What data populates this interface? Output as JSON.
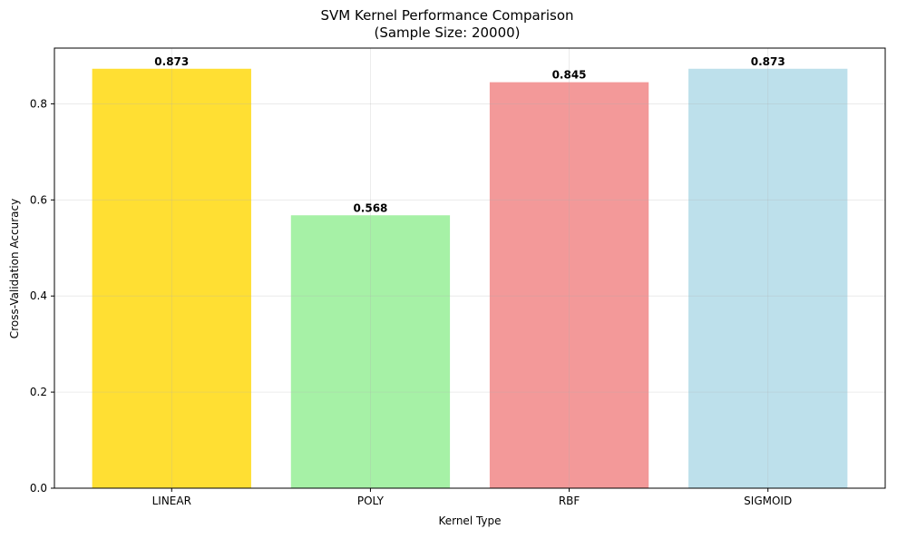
{
  "chart_data": {
    "type": "bar",
    "title": "SVM Kernel Performance Comparison",
    "subtitle": "(Sample Size: 20000)",
    "xlabel": "Kernel Type",
    "ylabel": "Cross-Validation Accuracy",
    "categories": [
      "LINEAR",
      "POLY",
      "RBF",
      "SIGMOID"
    ],
    "values": [
      0.873,
      0.568,
      0.845,
      0.873
    ],
    "value_labels": [
      "0.873",
      "0.568",
      "0.845",
      "0.873"
    ],
    "colors": [
      "#ffd700",
      "#90ee90",
      "#f08080",
      "#add8e6"
    ],
    "ylim": [
      0,
      0.916
    ],
    "yticks": [
      0.0,
      0.2,
      0.4,
      0.6,
      0.8
    ],
    "ytick_labels": [
      "0.0",
      "0.2",
      "0.4",
      "0.6",
      "0.8"
    ],
    "grid": true,
    "legend": false
  }
}
